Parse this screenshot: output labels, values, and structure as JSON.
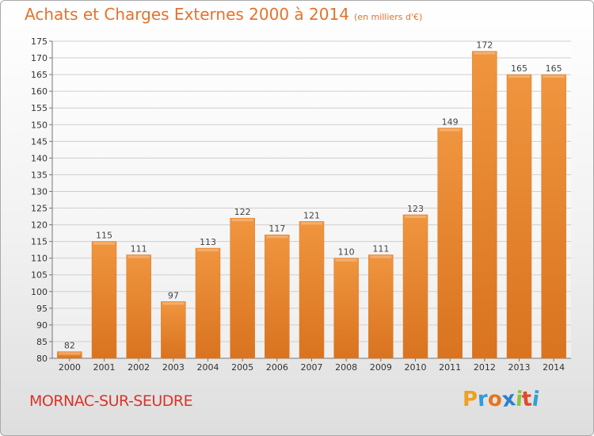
{
  "chart_data": {
    "type": "bar",
    "title": "Achats et Charges Externes 2000 à 2014",
    "subtitle": "(en milliers d'€)",
    "categories": [
      "2000",
      "2001",
      "2002",
      "2003",
      "2004",
      "2005",
      "2006",
      "2007",
      "2008",
      "2009",
      "2010",
      "2011",
      "2012",
      "2013",
      "2014"
    ],
    "values": [
      82,
      115,
      111,
      97,
      113,
      122,
      117,
      121,
      110,
      111,
      123,
      149,
      172,
      165,
      165
    ],
    "ylim": [
      80,
      175
    ],
    "yticks": [
      80,
      85,
      90,
      95,
      100,
      105,
      110,
      115,
      120,
      125,
      130,
      135,
      140,
      145,
      150,
      155,
      160,
      165,
      170,
      175
    ],
    "grid": true,
    "bar_color": "#f0953f",
    "bar_color_dark": "#d9731f"
  },
  "location": "MORNAC-SUR-SEUDRE",
  "brand": {
    "name": "Proxiti",
    "colors": [
      "#f0a020",
      "#2f9be0",
      "#e8731c",
      "#2b80d0",
      "#8fc33a",
      "#e04a2a",
      "#2fa0d8"
    ]
  },
  "colors": {
    "title": "#e3722d",
    "location": "#d9342b"
  }
}
